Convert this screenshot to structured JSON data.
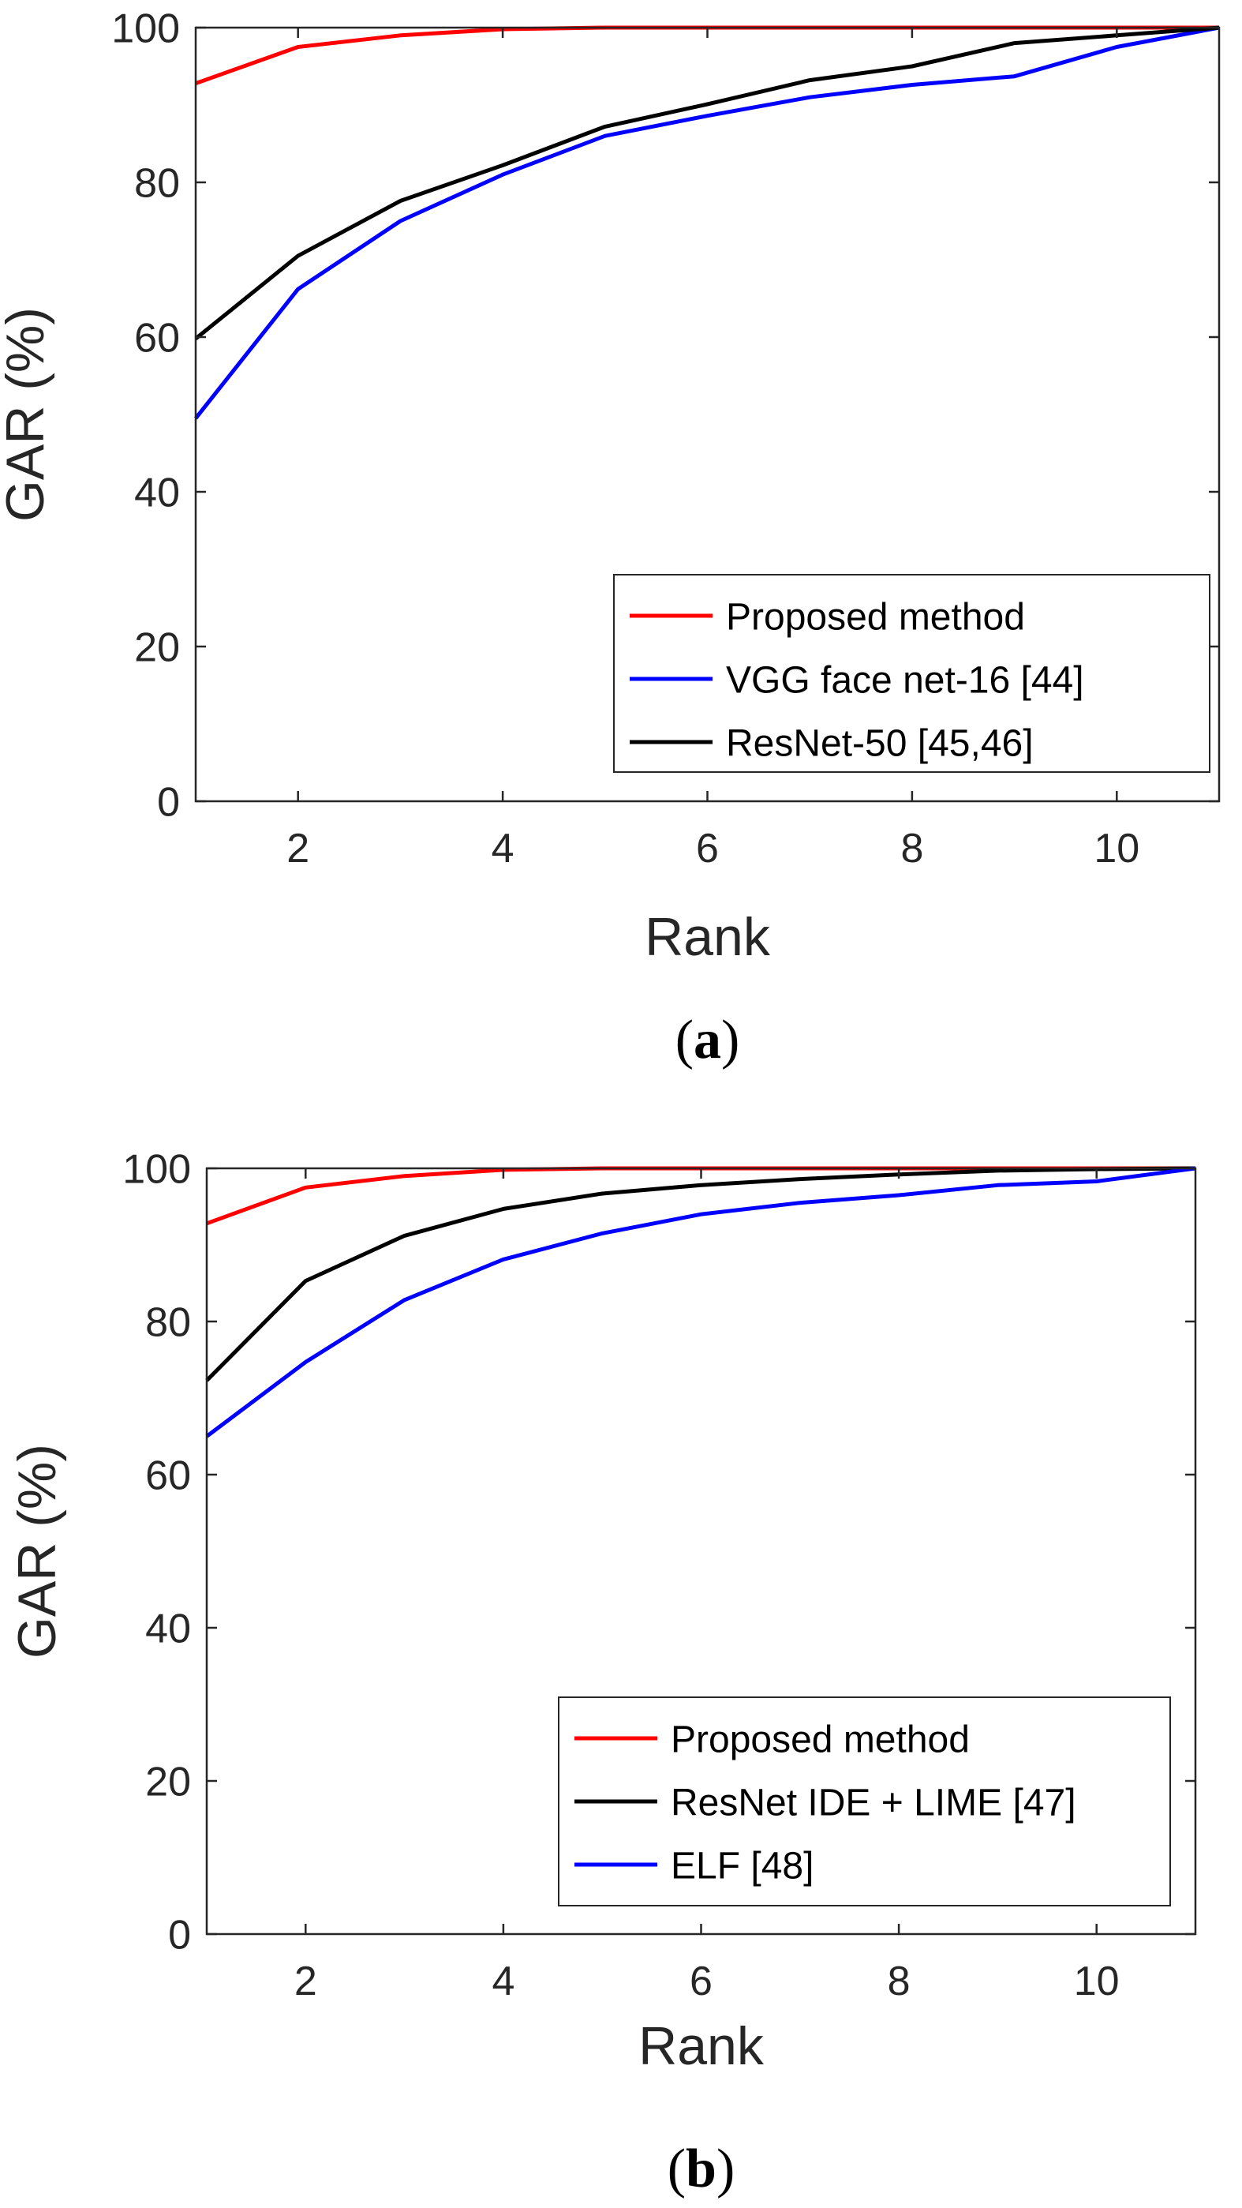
{
  "chart_data": [
    {
      "type": "line",
      "panel": "a",
      "caption_open": "(",
      "caption_letter": "a",
      "caption_close": ")",
      "xlabel": "Rank",
      "ylabel": "GAR (%)",
      "xlim": [
        1,
        11
      ],
      "ylim": [
        0,
        100
      ],
      "xticks": [
        2,
        4,
        6,
        8,
        10
      ],
      "yticks": [
        0,
        20,
        40,
        60,
        80,
        100
      ],
      "legend_position": "bottom-right",
      "x": [
        1,
        2,
        3,
        4,
        5,
        6,
        7,
        8,
        9,
        10,
        11
      ],
      "series": [
        {
          "name": "Proposed method",
          "color": "#ff0000",
          "values": [
            92.8,
            97.5,
            99.0,
            99.8,
            100,
            100,
            100,
            100,
            100,
            100,
            100
          ]
        },
        {
          "name": "VGG face net-16 [44]",
          "color": "#0000ff",
          "values": [
            49.5,
            66.2,
            75.0,
            81.0,
            86.0,
            88.6,
            91.0,
            92.6,
            93.7,
            97.5,
            100
          ]
        },
        {
          "name": "ResNet-50 [45,46]",
          "color": "#000000",
          "values": [
            59.8,
            70.5,
            77.6,
            82.2,
            87.2,
            90.1,
            93.2,
            95.0,
            98.0,
            99.0,
            100
          ]
        }
      ]
    },
    {
      "type": "line",
      "panel": "b",
      "caption_open": "(",
      "caption_letter": "b",
      "caption_close": ")",
      "xlabel": "Rank",
      "ylabel": "GAR (%)",
      "xlim": [
        1,
        11
      ],
      "ylim": [
        0,
        100
      ],
      "xticks": [
        2,
        4,
        6,
        8,
        10
      ],
      "yticks": [
        0,
        20,
        40,
        60,
        80,
        100
      ],
      "legend_position": "bottom-right",
      "x": [
        1,
        2,
        3,
        4,
        5,
        6,
        7,
        8,
        9,
        10,
        11
      ],
      "series": [
        {
          "name": "Proposed method",
          "color": "#ff0000",
          "values": [
            92.8,
            97.5,
            99.0,
            99.8,
            100,
            100,
            100,
            100,
            100,
            100,
            100
          ]
        },
        {
          "name": "ResNet IDE + LIME [47]",
          "color": "#000000",
          "values": [
            72.3,
            85.3,
            91.2,
            94.7,
            96.7,
            97.8,
            98.6,
            99.2,
            99.7,
            99.9,
            100
          ]
        },
        {
          "name": "ELF [48]",
          "color": "#0000ff",
          "values": [
            65.0,
            74.7,
            82.8,
            88.1,
            91.5,
            94.0,
            95.5,
            96.5,
            97.8,
            98.3,
            100
          ]
        }
      ]
    }
  ]
}
